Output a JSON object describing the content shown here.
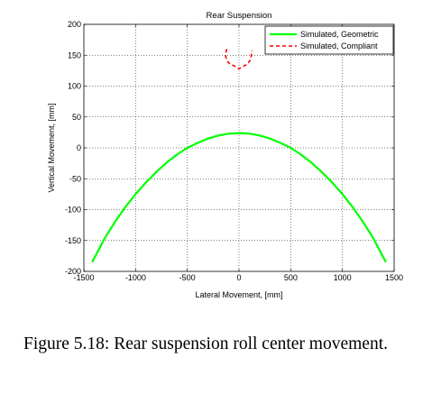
{
  "chart_data": {
    "type": "line",
    "title": "Rear Suspension",
    "xlabel": "Lateral Movement, [mm]",
    "ylabel": "Vertical Movement, [mm]",
    "xlim": [
      -1500,
      1500
    ],
    "ylim": [
      -200,
      200
    ],
    "xticks": [
      -1500,
      -1000,
      -500,
      0,
      500,
      1000,
      1500
    ],
    "yticks": [
      -200,
      -150,
      -100,
      -50,
      0,
      50,
      100,
      150,
      200
    ],
    "grid": true,
    "legend_position": "top-right",
    "series": [
      {
        "name": "Simulated, Geometric",
        "color": "#00ff00",
        "style": "solid",
        "x": [
          -1420,
          -1300,
          -1200,
          -1100,
          -1000,
          -900,
          -800,
          -700,
          -600,
          -500,
          -400,
          -300,
          -200,
          -100,
          0,
          100,
          200,
          300,
          400,
          500,
          600,
          700,
          800,
          900,
          1000,
          1100,
          1200,
          1300,
          1420
        ],
        "y": [
          -185,
          -147,
          -120,
          -96,
          -75,
          -56,
          -39,
          -24,
          -11,
          0,
          8,
          15,
          20,
          23,
          24,
          23,
          20,
          15,
          8,
          0,
          -11,
          -24,
          -39,
          -56,
          -75,
          -96,
          -120,
          -147,
          -185
        ]
      },
      {
        "name": "Simulated, Compliant",
        "color": "#ff0000",
        "style": "dashed",
        "x": [
          -120,
          -130,
          -120,
          -100,
          -80,
          -50,
          -20,
          0,
          20,
          50,
          80,
          100,
          115,
          120,
          125
        ],
        "y": [
          160,
          150,
          142,
          138,
          135,
          133,
          130,
          128,
          130,
          133,
          135,
          140,
          145,
          152,
          158
        ]
      }
    ]
  },
  "caption": "Figure 5.18: Rear suspension roll center movement."
}
